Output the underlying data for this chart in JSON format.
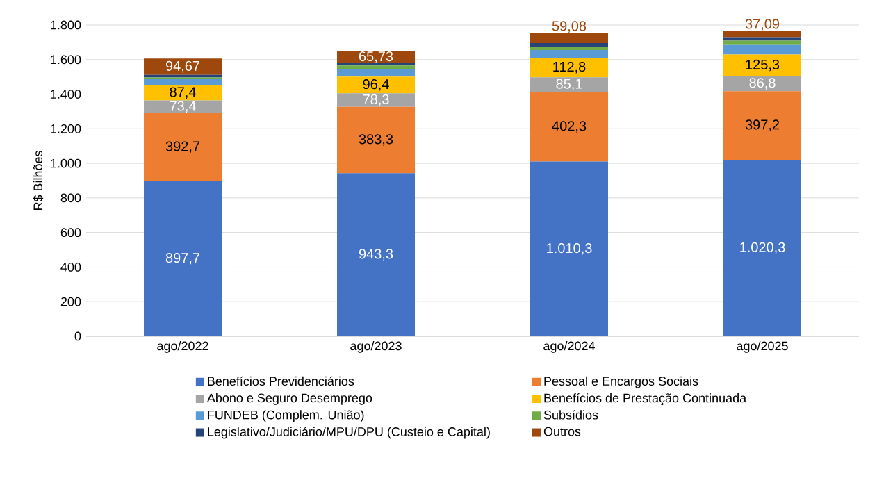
{
  "chart_data": {
    "type": "bar",
    "stacked": true,
    "ylabel": "R$ Bilhões",
    "categories": [
      "ago/2022",
      "ago/2023",
      "ago/2024",
      "ago/2025"
    ],
    "series": [
      {
        "name": "Benefícios Previdenciários",
        "color": "#4472c4",
        "values": [
          897.7,
          943.3,
          1010.3,
          1020.3
        ],
        "value_labels": [
          "897,7",
          "943,3",
          "1.010,3",
          "1.020,3"
        ]
      },
      {
        "name": "Pessoal e Encargos Sociais",
        "color": "#ed7d31",
        "values": [
          392.7,
          383.3,
          402.3,
          397.2
        ],
        "value_labels": [
          "392,7",
          "383,3",
          "402,3",
          "397,2"
        ]
      },
      {
        "name": "Abono e Seguro Desemprego",
        "color": "#a5a5a5",
        "values": [
          73.4,
          78.3,
          85.1,
          86.8
        ],
        "value_labels": [
          "73,4",
          "78,3",
          "85,1",
          "86,8"
        ]
      },
      {
        "name": "Benefícios de Prestação Continuada",
        "color": "#ffc000",
        "values": [
          87.4,
          96.4,
          112.8,
          125.3
        ],
        "value_labels": [
          "87,4",
          "96,4",
          "112,8",
          "125,3"
        ]
      },
      {
        "name": "FUNDEB (Complem. União)",
        "color": "#5b9bd5",
        "values": [
          35,
          45,
          45,
          55
        ]
      },
      {
        "name": "Subsídios",
        "color": "#70ad47",
        "values": [
          10,
          20,
          20,
          25
        ]
      },
      {
        "name": "Legislativo/Judiciário/MPU/DPU (Custeio e Capital)",
        "color": "#264478",
        "values": [
          15,
          15,
          20,
          20
        ]
      },
      {
        "name": "Outros",
        "color": "#9e480e",
        "values": [
          94.67,
          65.73,
          59.08,
          37.09
        ],
        "value_labels": [
          "94,67",
          "65,73",
          "59,08",
          "37,09"
        ]
      }
    ],
    "ylim": [
      0,
      1800
    ],
    "yticks": [
      0,
      200,
      400,
      600,
      800,
      {
        "value": 1000,
        "label": "1.000"
      },
      {
        "value": 1200,
        "label": "1.200"
      },
      {
        "value": 1400,
        "label": "1.400"
      },
      {
        "value": 1600,
        "label": "1.600"
      },
      {
        "value": 1800,
        "label": "1.800"
      }
    ],
    "grid": "y",
    "legend": "bottom"
  }
}
